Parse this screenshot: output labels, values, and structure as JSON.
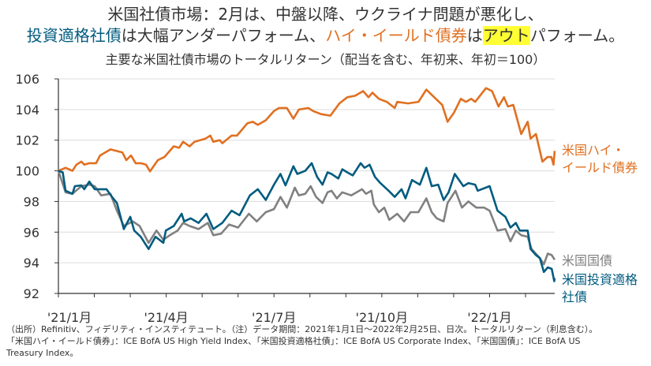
{
  "title": {
    "line1": "米国社債市場：2月は、中盤以降、ウクライナ問題が悪化し、",
    "line2": [
      {
        "text": "投資適格社債",
        "style": "blue"
      },
      {
        "text": "は大幅アンダーパフォーム、",
        "style": "plain"
      },
      {
        "text": "ハイ・イールド債券",
        "style": "orange"
      },
      {
        "text": "は",
        "style": "plain"
      },
      {
        "text": "アウト",
        "style": "highlight"
      },
      {
        "text": "パフォーム。",
        "style": "plain"
      }
    ]
  },
  "footnote": {
    "line1": "（出所）Refinitiv、フィデリティ・インスティテュート。（注）データ期間：2021年1月1日～2022年2月25日、日次。トータルリターン（利息含む）。",
    "line2": "「米国ハイ・イールド債券」：ICE BofA US High Yield Index、「米国投資適格社債」：ICE BofA US Corporate Index、「米国国債」：ICE BofA US",
    "line3": "Treasury Index。"
  },
  "chart_data": {
    "type": "line",
    "title": "主要な米国社債市場のトータルリターン（配当を含む、年初来、年初＝100）",
    "xlabel": "",
    "ylabel": "",
    "x_unit": "months since 2021-01-01",
    "xlim": [
      0,
      13.8
    ],
    "ylim": [
      92,
      106
    ],
    "yticks": [
      92,
      94,
      96,
      98,
      100,
      102,
      104,
      106
    ],
    "xticks": [
      {
        "label": "'21/1月",
        "x": 0
      },
      {
        "label": "'21/4月",
        "x": 3
      },
      {
        "label": "'21/7月",
        "x": 6
      },
      {
        "label": "'21/10月",
        "x": 9
      },
      {
        "label": "'22/1月",
        "x": 12
      }
    ],
    "grid": true,
    "series": [
      {
        "name": "米国ハイ・イールド債券",
        "label_lines": [
          "米国ハイ・",
          "イールド債券"
        ],
        "color": "#e07021",
        "x": [
          0,
          0.2,
          0.39,
          0.5,
          0.64,
          0.72,
          0.86,
          1.05,
          1.16,
          1.45,
          1.78,
          1.89,
          2.02,
          2.15,
          2.29,
          2.44,
          2.55,
          2.77,
          2.95,
          3.21,
          3.36,
          3.47,
          3.65,
          3.79,
          4.09,
          4.23,
          4.31,
          4.49,
          4.56,
          4.82,
          4.97,
          5.26,
          5.41,
          5.55,
          5.77,
          6.0,
          6.14,
          6.36,
          6.54,
          6.69,
          6.95,
          7.09,
          7.31,
          7.57,
          7.82,
          8.04,
          8.26,
          8.48,
          8.63,
          8.74,
          8.92,
          9.14,
          9.36,
          9.43,
          9.73,
          10.02,
          10.24,
          10.46,
          10.68,
          10.83,
          11.01,
          11.2,
          11.34,
          11.49,
          11.6,
          11.9,
          12.07,
          12.25,
          12.4,
          12.51,
          12.66,
          12.88,
          13.06,
          13.14,
          13.29,
          13.47,
          13.61,
          13.72,
          13.78,
          13.81
        ],
        "y": [
          100,
          100.2,
          100,
          100.4,
          100.6,
          100.4,
          100.5,
          100.5,
          101.0,
          101.4,
          101.2,
          100.7,
          101,
          100.5,
          100.5,
          100.4,
          99.96,
          100.7,
          100.9,
          101.6,
          101.5,
          101.9,
          101.6,
          101.9,
          102.1,
          102.3,
          101.9,
          102,
          101.8,
          102.3,
          102.3,
          103.1,
          103.2,
          103,
          103.3,
          103.9,
          104.1,
          104.1,
          103.4,
          104,
          104.1,
          103.9,
          103.7,
          103.6,
          104.4,
          104.8,
          104.9,
          105.2,
          104.8,
          105.1,
          104.7,
          104.5,
          104.1,
          104.5,
          104.4,
          104.5,
          105.3,
          104.8,
          104.3,
          103.2,
          103.8,
          104.7,
          104.5,
          104.7,
          104.5,
          105.4,
          105.2,
          104.2,
          104.8,
          104.2,
          104.3,
          102.4,
          103.2,
          102.1,
          102.4,
          100.6,
          100.9,
          100.9,
          100.4,
          101.3
        ]
      },
      {
        "name": "米国国債",
        "label_lines": [
          "米国国債"
        ],
        "color": "#808080",
        "x": [
          0,
          0.2,
          0.39,
          0.64,
          0.86,
          1.01,
          1.19,
          1.45,
          1.63,
          1.82,
          2.07,
          2.26,
          2.51,
          2.73,
          2.92,
          3.1,
          3.32,
          3.47,
          3.65,
          3.9,
          4.16,
          4.31,
          4.53,
          4.75,
          5.0,
          5.3,
          5.52,
          5.77,
          6.0,
          6.18,
          6.36,
          6.58,
          6.69,
          6.87,
          7.02,
          7.17,
          7.35,
          7.49,
          7.6,
          7.75,
          7.9,
          8.15,
          8.3,
          8.45,
          8.56,
          8.71,
          8.78,
          8.92,
          9.07,
          9.21,
          9.43,
          9.62,
          9.8,
          10.02,
          10.24,
          10.39,
          10.53,
          10.72,
          10.83,
          11.05,
          11.23,
          11.41,
          11.63,
          11.85,
          12.0,
          12.22,
          12.44,
          12.58,
          12.73,
          12.88,
          13.06,
          13.17,
          13.4,
          13.51,
          13.62,
          13.73,
          13.81
        ],
        "y": [
          100,
          98.6,
          98.5,
          99,
          99.1,
          99,
          98.4,
          98.5,
          97.4,
          96.4,
          96.7,
          96.4,
          95.3,
          96.1,
          95.5,
          95.8,
          96.1,
          96.6,
          96.4,
          96.2,
          96.6,
          95.8,
          95.9,
          96.5,
          96.3,
          97.2,
          96.7,
          97.3,
          97.5,
          98.3,
          97.6,
          98.9,
          98.4,
          98.5,
          99,
          98.3,
          97.9,
          98.6,
          98.7,
          98.2,
          98.6,
          98.4,
          98.6,
          98.8,
          98.5,
          98.7,
          97.8,
          97.3,
          97.6,
          96.8,
          97.2,
          96.7,
          97.3,
          97.3,
          98.2,
          97.3,
          96.9,
          96.7,
          97.9,
          98.7,
          97.6,
          98,
          97.6,
          97.6,
          97.4,
          96.1,
          96.2,
          95.4,
          96.1,
          95.8,
          95.7,
          94.9,
          94.3,
          93.9,
          94.6,
          94.5,
          94.2
        ]
      },
      {
        "name": "米国投資適格社債",
        "label_lines": [
          "米国投資適格",
          "社債"
        ],
        "color": "#005b7f",
        "x": [
          0,
          0.12,
          0.2,
          0.39,
          0.46,
          0.64,
          0.72,
          0.86,
          1.01,
          1.34,
          1.49,
          1.63,
          1.82,
          2.0,
          2.11,
          2.29,
          2.51,
          2.7,
          2.92,
          2.99,
          3.21,
          3.43,
          3.5,
          3.68,
          3.9,
          4.12,
          4.31,
          4.56,
          4.82,
          5.04,
          5.33,
          5.55,
          5.77,
          6.0,
          6.18,
          6.32,
          6.54,
          6.65,
          6.87,
          7.05,
          7.2,
          7.35,
          7.49,
          7.6,
          7.79,
          7.9,
          8.04,
          8.19,
          8.41,
          8.52,
          8.66,
          8.81,
          8.96,
          9.19,
          9.36,
          9.55,
          9.66,
          9.84,
          10.06,
          10.24,
          10.39,
          10.57,
          10.72,
          10.86,
          11.03,
          11.27,
          11.41,
          11.6,
          11.67,
          12.0,
          12.22,
          12.44,
          12.58,
          12.73,
          12.84,
          13.06,
          13.14,
          13.29,
          13.4,
          13.51,
          13.62,
          13.73,
          13.8,
          13.81
        ],
        "y": [
          100,
          99.9,
          98.7,
          98.5,
          99,
          99.05,
          98.8,
          99.3,
          98.8,
          98.8,
          98.3,
          97.9,
          96.2,
          97,
          96.1,
          95.7,
          94.9,
          95.7,
          95.3,
          96.1,
          96.4,
          97.2,
          96.7,
          96.9,
          96.6,
          97.2,
          96.2,
          96.6,
          97.4,
          97.1,
          98.4,
          98.8,
          98.1,
          99.1,
          99.8,
          99.05,
          100.3,
          99.8,
          100,
          100.5,
          99.6,
          99.1,
          99.9,
          99.8,
          99.5,
          100.1,
          99.9,
          99.7,
          100.5,
          100.2,
          100.4,
          99.6,
          99.2,
          98.7,
          98.3,
          98.8,
          98.2,
          99.4,
          99.1,
          100.2,
          99,
          99.1,
          98.1,
          98.6,
          99.8,
          99,
          99.2,
          99.1,
          98.7,
          99,
          97.4,
          97,
          96.3,
          96.6,
          96.1,
          96.1,
          94.9,
          94.5,
          94.3,
          93.4,
          93.7,
          93.6,
          92.8,
          93
        ]
      }
    ]
  }
}
